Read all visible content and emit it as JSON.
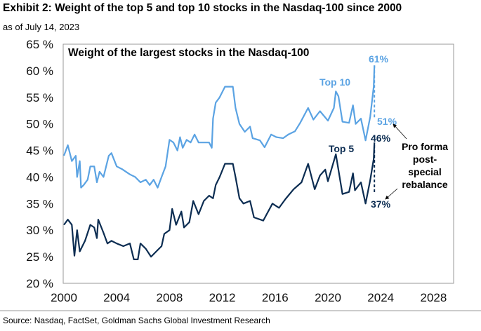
{
  "header": {
    "title": "Exhibit 2: Weight of the top 5 and top 10 stocks in the Nasdaq-100 since 2000",
    "subtitle": "as of July 14, 2023"
  },
  "footer": {
    "source": "Source: Nasdaq, FactSet, Goldman Sachs Global Investment Research"
  },
  "chart_data": {
    "type": "line",
    "title": "Weight of the largest stocks in the Nasdaq-100",
    "xlabel": "",
    "ylabel": "",
    "xlim": [
      2000,
      2029.5
    ],
    "ylim": [
      20,
      65
    ],
    "xticks": [
      2000,
      2004,
      2008,
      2012,
      2016,
      2020,
      2024,
      2028
    ],
    "xtick_labels": [
      "2000",
      "2004",
      "2008",
      "2012",
      "2016",
      "2020",
      "2024",
      "2028"
    ],
    "yticks": [
      20,
      25,
      30,
      35,
      40,
      45,
      50,
      55,
      60,
      65
    ],
    "ytick_labels": [
      "20 %",
      "25 %",
      "30 %",
      "35 %",
      "40 %",
      "45 %",
      "50 %",
      "55 %",
      "60 %",
      "65 %"
    ],
    "grid": false,
    "series": [
      {
        "name": "Top 10",
        "color": "#5ba3e3",
        "x": [
          2000,
          2000.3,
          2000.6,
          2000.9,
          2001.0,
          2001.2,
          2001.3,
          2001.5,
          2001.8,
          2002.0,
          2002.3,
          2002.5,
          2002.7,
          2003.0,
          2003.4,
          2003.6,
          2004.0,
          2004.4,
          2004.7,
          2005.0,
          2005.4,
          2005.8,
          2006.2,
          2006.5,
          2006.8,
          2007.1,
          2007.4,
          2007.7,
          2008.0,
          2008.3,
          2008.6,
          2008.8,
          2009.0,
          2009.3,
          2009.6,
          2009.9,
          2010.2,
          2010.6,
          2011.0,
          2011.2,
          2011.3,
          2011.5,
          2011.8,
          2012.2,
          2012.5,
          2012.8,
          2013.0,
          2013.3,
          2013.7,
          2014.1,
          2014.3,
          2014.85,
          2015.2,
          2015.7,
          2016.1,
          2016.6,
          2017.0,
          2017.5,
          2017.9,
          2018.5,
          2018.9,
          2019.4,
          2020.0,
          2020.45,
          2020.6,
          2020.8,
          2021.1,
          2021.6,
          2021.9,
          2022.1,
          2022.5,
          2022.85,
          2023.2,
          2023.47,
          2023.52
        ],
        "y": [
          44,
          46,
          43,
          44,
          40,
          43,
          38,
          38.5,
          39.5,
          42,
          42,
          39,
          41,
          40,
          44,
          44.5,
          42,
          41.5,
          41,
          40.5,
          40,
          39,
          39.5,
          38.5,
          39.5,
          38,
          40,
          42,
          47,
          46.5,
          45,
          47.5,
          45.5,
          47,
          46.5,
          48,
          46.5,
          46.5,
          46.5,
          45.5,
          51,
          54,
          55,
          57,
          57,
          57,
          53,
          50,
          48.5,
          49.5,
          47.3,
          46.9,
          45.6,
          48,
          47.5,
          47.3,
          48,
          48.6,
          50.2,
          53,
          50.8,
          52.4,
          50.6,
          53,
          56.1,
          55.2,
          50.4,
          50.2,
          53.5,
          50,
          51,
          46.9,
          51.3,
          57,
          61
        ]
      },
      {
        "name": "Top 5",
        "color": "#0c2d52",
        "x": [
          2000,
          2000.3,
          2000.6,
          2000.8,
          2001.0,
          2001.2,
          2001.6,
          2002.0,
          2002.3,
          2002.5,
          2002.6,
          2003.0,
          2003.3,
          2003.6,
          2004.0,
          2004.5,
          2005.0,
          2005.3,
          2005.6,
          2005.8,
          2006.2,
          2006.6,
          2007.0,
          2007.4,
          2007.6,
          2008.0,
          2008.2,
          2008.5,
          2008.9,
          2009.1,
          2009.5,
          2009.8,
          2010.2,
          2010.6,
          2011.0,
          2011.3,
          2011.5,
          2011.8,
          2012.2,
          2012.8,
          2013.0,
          2013.3,
          2013.6,
          2014.1,
          2014.4,
          2015.1,
          2015.8,
          2016.3,
          2016.8,
          2017.4,
          2018.0,
          2018.5,
          2019.0,
          2019.4,
          2019.8,
          2020.0,
          2020.6,
          2021.1,
          2021.6,
          2021.9,
          2022.05,
          2022.5,
          2022.85,
          2023.2,
          2023.47,
          2023.52
        ],
        "y": [
          31,
          32,
          31,
          25.2,
          30,
          26,
          28,
          31,
          30.5,
          28.5,
          32,
          29.5,
          27.5,
          28,
          27.5,
          27,
          27.5,
          24.5,
          24.5,
          27.5,
          26.5,
          25,
          26,
          27,
          29.3,
          30,
          34,
          31,
          33.5,
          30.5,
          31.5,
          35.5,
          33,
          35.5,
          36.5,
          36,
          38.5,
          40,
          42.5,
          42.5,
          40,
          36,
          35,
          35.5,
          32.4,
          31.8,
          35,
          34.2,
          35.9,
          37.7,
          39,
          42.5,
          37.7,
          40.3,
          41.4,
          39.2,
          44.3,
          36.8,
          37.2,
          40.7,
          37.5,
          39,
          35,
          39.4,
          43.4,
          46.5
        ]
      }
    ],
    "pro_forma": [
      {
        "series": "Top 10",
        "x": 2023.52,
        "from": 61,
        "to": 51
      },
      {
        "series": "Top 5",
        "x": 2023.52,
        "from": 46,
        "to": 37
      }
    ],
    "annotations": {
      "top10_label": "Top 10",
      "top5_label": "Top 5",
      "top10_peak": "61%",
      "top10_proforma": "51%",
      "top5_peak": "46%",
      "top5_proforma": "37%",
      "note_lines": [
        "Pro forma",
        "post-",
        "special",
        "rebalance"
      ]
    }
  }
}
